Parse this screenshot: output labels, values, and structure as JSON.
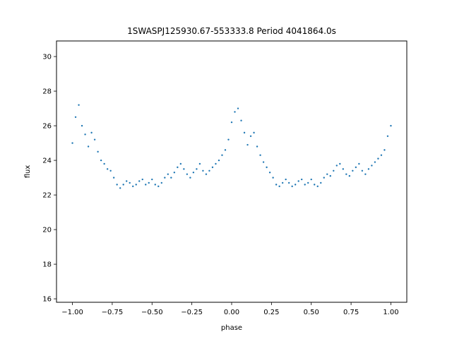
{
  "chart_data": {
    "type": "scatter",
    "title": "1SWASPJ125930.67-553333.8 Period 4041864.0s",
    "xlabel": "phase",
    "ylabel": "flux",
    "xlim": [
      -1.1,
      1.1
    ],
    "ylim": [
      15.8,
      30.9
    ],
    "xticks": [
      -1.0,
      -0.75,
      -0.5,
      -0.25,
      0.0,
      0.25,
      0.5,
      0.75,
      1.0
    ],
    "xtick_labels": [
      "−1.00",
      "−0.75",
      "−0.50",
      "−0.25",
      "0.00",
      "0.25",
      "0.50",
      "0.75",
      "1.00"
    ],
    "yticks": [
      16,
      18,
      20,
      22,
      24,
      26,
      28,
      30
    ],
    "ytick_labels": [
      "16",
      "18",
      "20",
      "22",
      "24",
      "26",
      "28",
      "30"
    ],
    "grid": false,
    "marker_color": "#1f77b4",
    "series": [
      {
        "points": [
          [
            -1.0,
            25.0
          ],
          [
            -0.98,
            26.5
          ],
          [
            -0.96,
            27.2
          ],
          [
            -0.94,
            26.0
          ],
          [
            -0.92,
            25.5
          ],
          [
            -0.9,
            24.8
          ],
          [
            -0.88,
            25.6
          ],
          [
            -0.86,
            25.2
          ],
          [
            -0.84,
            24.5
          ],
          [
            -0.82,
            24.0
          ],
          [
            -0.8,
            23.8
          ],
          [
            -0.78,
            23.5
          ],
          [
            -0.76,
            23.4
          ],
          [
            -0.74,
            23.0
          ],
          [
            -0.72,
            22.6
          ],
          [
            -0.7,
            22.4
          ],
          [
            -0.68,
            22.6
          ],
          [
            -0.66,
            22.8
          ],
          [
            -0.64,
            22.7
          ],
          [
            -0.62,
            22.5
          ],
          [
            -0.6,
            22.6
          ],
          [
            -0.58,
            22.8
          ],
          [
            -0.56,
            22.9
          ],
          [
            -0.54,
            22.6
          ],
          [
            -0.52,
            22.7
          ],
          [
            -0.5,
            22.9
          ],
          [
            -0.48,
            22.6
          ],
          [
            -0.46,
            22.5
          ],
          [
            -0.44,
            22.7
          ],
          [
            -0.42,
            23.0
          ],
          [
            -0.4,
            23.2
          ],
          [
            -0.38,
            23.0
          ],
          [
            -0.36,
            23.3
          ],
          [
            -0.34,
            23.6
          ],
          [
            -0.32,
            23.8
          ],
          [
            -0.3,
            23.5
          ],
          [
            -0.28,
            23.2
          ],
          [
            -0.26,
            23.0
          ],
          [
            -0.24,
            23.3
          ],
          [
            -0.22,
            23.5
          ],
          [
            -0.2,
            23.8
          ],
          [
            -0.18,
            23.4
          ],
          [
            -0.16,
            23.2
          ],
          [
            -0.14,
            23.4
          ],
          [
            -0.12,
            23.6
          ],
          [
            -0.1,
            23.8
          ],
          [
            -0.08,
            24.0
          ],
          [
            -0.06,
            24.3
          ],
          [
            -0.04,
            24.6
          ],
          [
            -0.02,
            25.2
          ],
          [
            0.0,
            26.2
          ],
          [
            0.02,
            26.8
          ],
          [
            0.04,
            27.0
          ],
          [
            0.06,
            26.3
          ],
          [
            0.08,
            25.6
          ],
          [
            0.1,
            24.9
          ],
          [
            0.12,
            25.4
          ],
          [
            0.14,
            25.6
          ],
          [
            0.16,
            24.8
          ],
          [
            0.18,
            24.3
          ],
          [
            0.2,
            23.9
          ],
          [
            0.22,
            23.6
          ],
          [
            0.24,
            23.3
          ],
          [
            0.26,
            23.0
          ],
          [
            0.28,
            22.6
          ],
          [
            0.3,
            22.5
          ],
          [
            0.32,
            22.7
          ],
          [
            0.34,
            22.9
          ],
          [
            0.36,
            22.7
          ],
          [
            0.38,
            22.5
          ],
          [
            0.4,
            22.6
          ],
          [
            0.42,
            22.8
          ],
          [
            0.44,
            22.9
          ],
          [
            0.46,
            22.6
          ],
          [
            0.48,
            22.7
          ],
          [
            0.5,
            22.9
          ],
          [
            0.52,
            22.6
          ],
          [
            0.54,
            22.5
          ],
          [
            0.56,
            22.7
          ],
          [
            0.58,
            23.0
          ],
          [
            0.6,
            23.2
          ],
          [
            0.62,
            23.1
          ],
          [
            0.64,
            23.4
          ],
          [
            0.66,
            23.7
          ],
          [
            0.68,
            23.8
          ],
          [
            0.7,
            23.5
          ],
          [
            0.72,
            23.2
          ],
          [
            0.74,
            23.1
          ],
          [
            0.76,
            23.4
          ],
          [
            0.78,
            23.6
          ],
          [
            0.8,
            23.8
          ],
          [
            0.82,
            23.4
          ],
          [
            0.84,
            23.2
          ],
          [
            0.86,
            23.5
          ],
          [
            0.88,
            23.7
          ],
          [
            0.9,
            23.9
          ],
          [
            0.92,
            24.1
          ],
          [
            0.94,
            24.3
          ],
          [
            0.96,
            24.6
          ],
          [
            0.98,
            25.4
          ],
          [
            1.0,
            26.0
          ]
        ]
      }
    ]
  }
}
